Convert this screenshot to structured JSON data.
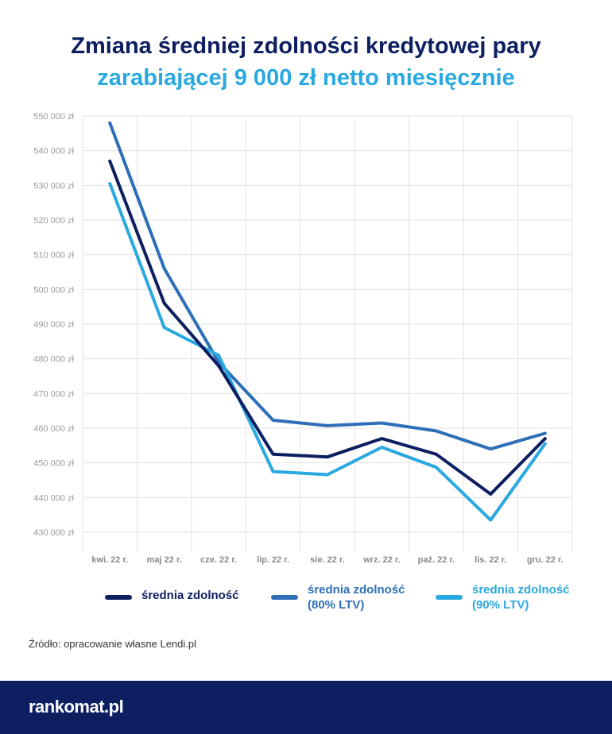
{
  "header": {
    "title_line1": "Zmiana średniej zdolności kredytowej pary",
    "title_line2": "zarabiającej 9 000 zł netto miesięcznie"
  },
  "chart_data": {
    "type": "line",
    "categories": [
      "kwi. 22 r.",
      "maj 22 r.",
      "cze. 22  r.",
      "lip. 22 r.",
      "sie. 22 r.",
      "wrz. 22 r.",
      "paź. 22 r.",
      "lis. 22 r.",
      "gru. 22 r."
    ],
    "y_ticks": [
      "430 000 zł",
      "440 000 zł",
      "450 000 zł",
      "460 000 zł",
      "470 000 zł",
      "480 000 zł",
      "490 000 zł",
      "500 000 zł",
      "510 000 zł",
      "520 000 zł",
      "530 000 zł",
      "540 000 zł",
      "550 000 zł"
    ],
    "ylim": [
      430000,
      550000
    ],
    "grid": true,
    "legend_position": "bottom",
    "series": [
      {
        "name": "średnia zdolność",
        "color": "#0d1f61",
        "values": [
          537000,
          496000,
          478000,
          452500,
          451700,
          457000,
          452500,
          441000,
          457000
        ]
      },
      {
        "name": "średnia zdolność (80% LTV)",
        "name_line1": "średnia zdolność",
        "name_line2": "(80% LTV)",
        "color": "#2e6fb8",
        "values": [
          548000,
          506000,
          479000,
          462300,
          460700,
          461500,
          459200,
          454000,
          458500
        ]
      },
      {
        "name": "średnia zdolność (90% LTV)",
        "name_line1": "średnia zdolność",
        "name_line2": "(90% LTV)",
        "color": "#2aa9e0",
        "values": [
          530500,
          489000,
          481000,
          447500,
          446600,
          454500,
          448700,
          433500,
          455500
        ]
      }
    ]
  },
  "source": {
    "text": "Źródło: opracowanie własne Lendi.pl"
  },
  "footer": {
    "brand": "rankomat.pl"
  }
}
